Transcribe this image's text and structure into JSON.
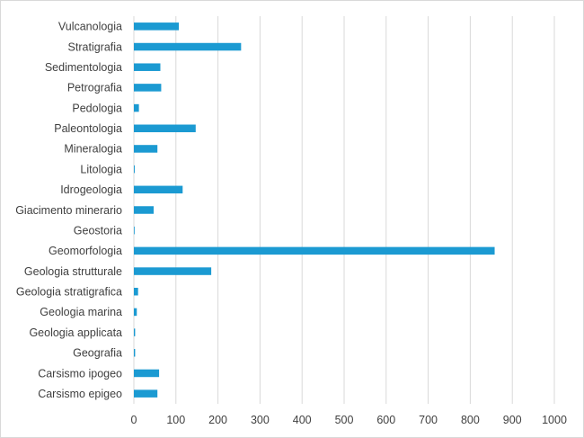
{
  "chart_data": {
    "type": "bar",
    "orientation": "horizontal",
    "title": "",
    "xlabel": "",
    "ylabel": "",
    "categories": [
      "Vulcanologia",
      "Stratigrafia",
      "Sedimentologia",
      "Petrografia",
      "Pedologia",
      "Paleontologia",
      "Mineralogia",
      "Litologia",
      "Idrogeologia",
      "Giacimento minerario",
      "Geostoria",
      "Geomorfologia",
      "Geologia strutturale",
      "Geologia stratigrafica",
      "Geologia marina",
      "Geologia applicata",
      "Geografia",
      "Carsismo ipogeo",
      "Carsismo epigeo"
    ],
    "values": [
      107,
      255,
      63,
      65,
      12,
      147,
      56,
      2,
      116,
      47,
      1,
      858,
      184,
      10,
      7,
      3,
      3,
      60,
      56
    ],
    "xlim": [
      0,
      1000
    ],
    "xticks": [
      "0",
      "100",
      "200",
      "300",
      "400",
      "500",
      "600",
      "700",
      "800",
      "900",
      "1000"
    ],
    "grid": "vertical",
    "legend": "none",
    "bar_color": "#1B9AD2",
    "grid_color": "#d9d9d9"
  }
}
